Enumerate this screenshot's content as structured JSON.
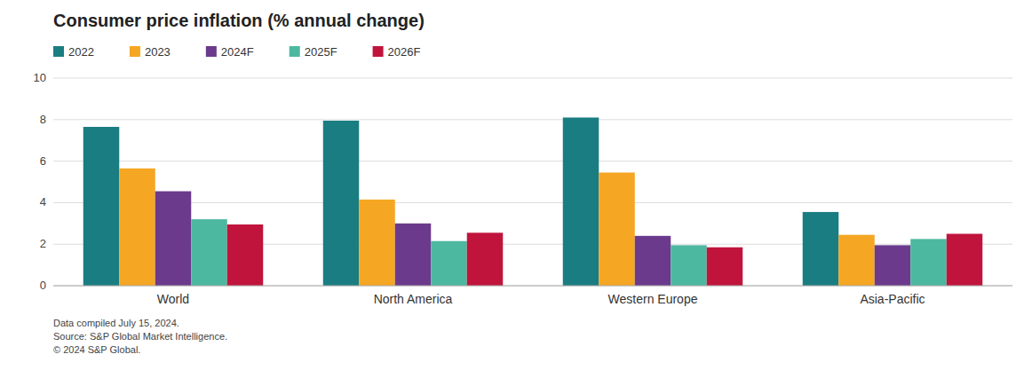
{
  "chart_data": {
    "type": "bar",
    "title": "Consumer price inflation (% annual change)",
    "categories": [
      "World",
      "North America",
      "Western Europe",
      "Asia-Pacific"
    ],
    "series": [
      {
        "name": "2022",
        "color": "#1a7d82",
        "values": [
          7.65,
          7.95,
          8.1,
          3.55
        ]
      },
      {
        "name": "2023",
        "color": "#f5a623",
        "values": [
          5.65,
          4.15,
          5.45,
          2.45
        ]
      },
      {
        "name": "2024F",
        "color": "#6b3a8c",
        "values": [
          4.55,
          3.0,
          2.4,
          1.95
        ]
      },
      {
        "name": "2025F",
        "color": "#4db8a0",
        "values": [
          3.2,
          2.15,
          1.95,
          2.25
        ]
      },
      {
        "name": "2026F",
        "color": "#c0143c",
        "values": [
          2.95,
          2.55,
          1.85,
          2.5
        ]
      }
    ],
    "ylim": [
      0,
      10
    ],
    "yticks": [
      0,
      2,
      4,
      6,
      8,
      10
    ],
    "grid": true,
    "legend": "top",
    "annotations": [
      "Data compiled July 15, 2024.",
      "Source: S&P Global Market Intelligence.",
      "© 2024 S&P Global."
    ]
  }
}
